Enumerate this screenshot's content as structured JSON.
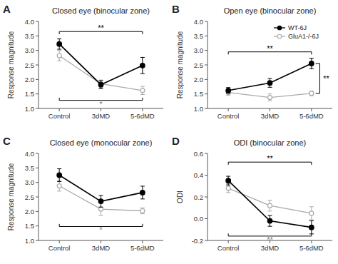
{
  "chart_data": [
    {
      "type": "line",
      "panel_label": "A",
      "title": "Closed eye (binocular zone)",
      "ylabel": "Response magnitude",
      "categories": [
        "Control",
        "3dMD",
        "5-6dMD"
      ],
      "series": [
        {
          "name": "WT-6J",
          "color": "#000000",
          "marker": "circle",
          "values": [
            3.22,
            1.82,
            2.48
          ],
          "errors": [
            0.18,
            0.14,
            0.28
          ]
        },
        {
          "name": "GluA1-/-6J",
          "color": "#aaaaaa",
          "marker": "open-circle",
          "values": [
            2.82,
            1.85,
            1.62
          ],
          "errors": [
            0.18,
            0.13,
            0.14
          ]
        }
      ],
      "ylim": [
        1.0,
        4.0
      ],
      "yticks": [
        {
          "value": 1.0,
          "label": "1.0"
        },
        1.5,
        {
          "value": 2.0,
          "label": "2.0"
        },
        2.5,
        {
          "value": 3.0,
          "label": "3.0"
        },
        3.5,
        {
          "value": 4.0,
          "label": "4.0"
        }
      ],
      "grid": false,
      "legend": false,
      "annotations": [
        {
          "type": "bracket-top",
          "from": "Control",
          "to": "5-6dMD",
          "y": 3.65,
          "text": "**",
          "color": "black"
        },
        {
          "type": "bracket-bottom",
          "from": "Control",
          "to": "5-6dMD",
          "y": 1.28,
          "text": "*",
          "color": "gray"
        }
      ]
    },
    {
      "type": "line",
      "panel_label": "B",
      "title": "Open eye (binocular zone)",
      "ylabel": "Response magnitude",
      "categories": [
        "Control",
        "3dMD",
        "5-6dMD"
      ],
      "series": [
        {
          "name": "WT-6J",
          "color": "#000000",
          "marker": "circle",
          "values": [
            1.62,
            1.88,
            2.55
          ],
          "errors": [
            0.1,
            0.15,
            0.18
          ]
        },
        {
          "name": "GluA1-/-6J",
          "color": "#aaaaaa",
          "marker": "open-circle",
          "values": [
            1.55,
            1.38,
            1.52
          ],
          "errors": [
            0.1,
            0.12,
            0.08
          ]
        }
      ],
      "ylim": [
        1.0,
        4.0
      ],
      "yticks": [
        {
          "value": 1.0,
          "label": "1.0"
        },
        1.5,
        {
          "value": 2.0,
          "label": "2.0"
        },
        2.5,
        {
          "value": 3.0,
          "label": "3.0"
        },
        3.5,
        {
          "value": 4.0,
          "label": "4.0"
        }
      ],
      "grid": false,
      "legend": "upper right",
      "annotations": [
        {
          "type": "bracket-top",
          "from": "Control",
          "to": "5-6dMD",
          "y": 2.95,
          "text": "**",
          "color": "black"
        },
        {
          "type": "bracket-right",
          "at": "5-6dMD",
          "y1": 1.52,
          "y2": 2.55,
          "text": "**",
          "color": "black"
        }
      ]
    },
    {
      "type": "line",
      "panel_label": "C",
      "title": "Closed eye (monocular zone)",
      "ylabel": "Response magnitude",
      "categories": [
        "Control",
        "3dMD",
        "5-6dMD"
      ],
      "series": [
        {
          "name": "WT-6J",
          "color": "#000000",
          "marker": "circle",
          "values": [
            3.25,
            2.35,
            2.65
          ],
          "errors": [
            0.22,
            0.2,
            0.22
          ]
        },
        {
          "name": "GluA1-/-6J",
          "color": "#aaaaaa",
          "marker": "open-circle",
          "values": [
            2.88,
            2.08,
            2.02
          ],
          "errors": [
            0.18,
            0.22,
            0.1
          ]
        }
      ],
      "ylim": [
        1.0,
        4.0
      ],
      "yticks": [
        {
          "value": 1.0,
          "label": "1.0"
        },
        1.5,
        {
          "value": 2.0,
          "label": "2.0"
        },
        2.5,
        {
          "value": 3.0,
          "label": "3.0"
        },
        3.5,
        {
          "value": 4.0,
          "label": "4.0"
        }
      ],
      "grid": false,
      "legend": false,
      "annotations": [
        {
          "type": "bracket-bottom",
          "from": "Control",
          "to": "5-6dMD",
          "y": 1.48,
          "text": "*",
          "color": "gray"
        }
      ]
    },
    {
      "type": "line",
      "panel_label": "D",
      "title": "ODI (binocular zone)",
      "ylabel": "ODI",
      "categories": [
        "Control",
        "3dMD",
        "5-6dMD"
      ],
      "series": [
        {
          "name": "WT-6J",
          "color": "#000000",
          "marker": "circle",
          "values": [
            0.35,
            -0.02,
            -0.08
          ],
          "errors": [
            0.04,
            0.05,
            0.06
          ]
        },
        {
          "name": "GluA1-/-6J",
          "color": "#aaaaaa",
          "marker": "open-circle",
          "values": [
            0.28,
            0.12,
            0.05
          ],
          "errors": [
            0.04,
            0.05,
            0.06
          ]
        }
      ],
      "ylim": [
        -0.2,
        0.6
      ],
      "yticks": [
        -0.2,
        {
          "value": 0.0,
          "label": "0.0"
        },
        0.2,
        0.4,
        0.6
      ],
      "grid": false,
      "legend": false,
      "annotations": [
        {
          "type": "bracket-top",
          "from": "Control",
          "to": "5-6dMD",
          "y": 0.52,
          "text": "**",
          "color": "black"
        },
        {
          "type": "bracket-bottom",
          "from": "Control",
          "to": "5-6dMD",
          "y": -0.16,
          "text": "**",
          "color": "gray"
        }
      ]
    }
  ]
}
